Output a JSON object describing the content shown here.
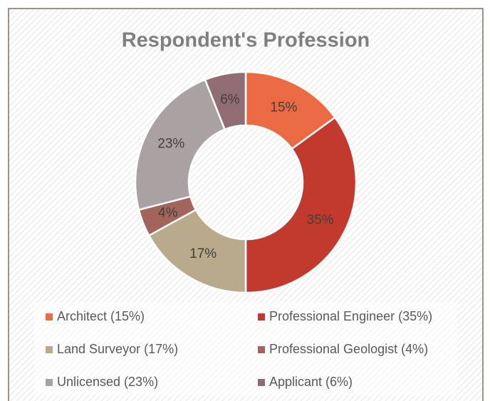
{
  "chart_data": {
    "type": "donut",
    "title": "Respondent's Profession",
    "categories": [
      "Architect (15%)",
      "Professional Engineer (35%)",
      "Land Surveyor (17%)",
      "Professional Geologist (4%)",
      "Unlicensed (23%)",
      "Applicant (6%)"
    ],
    "values": [
      15,
      35,
      17,
      4,
      23,
      6
    ],
    "value_labels": [
      "15%",
      "35%",
      "17%",
      "4%",
      "23%",
      "6%"
    ],
    "colors": [
      "#e96a43",
      "#c23a2e",
      "#b8aa8a",
      "#a3645b",
      "#aaa2a2",
      "#8f6d72"
    ],
    "legend": "bottom"
  }
}
